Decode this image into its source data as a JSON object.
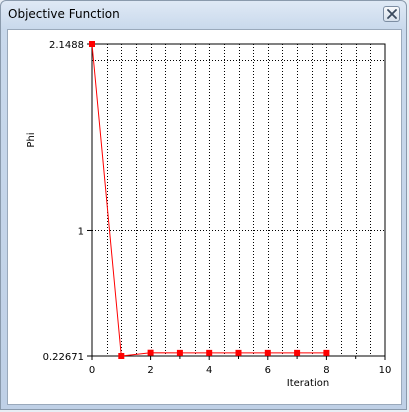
{
  "window": {
    "title": "Objective Function",
    "close_icon": "close-icon"
  },
  "chart_data": {
    "type": "line",
    "xlabel": "Iteration",
    "ylabel": "Phi",
    "xlim": [
      0,
      10
    ],
    "ylim": [
      0.22671,
      2.1488
    ],
    "x_ticks": [
      "0",
      "2",
      "4",
      "6",
      "8",
      "10"
    ],
    "y_ticks": [
      {
        "label": "2.1488",
        "value": 2.1488
      },
      {
        "label": "1",
        "value": 1
      },
      {
        "label": "0.22671",
        "value": 0.22671
      }
    ],
    "grid": true,
    "series": [
      {
        "color": "#ff0000",
        "x": [
          0,
          1,
          2,
          3,
          4,
          5,
          6,
          7,
          8
        ],
        "y": [
          2.1488,
          0.22671,
          0.247,
          0.246,
          0.246,
          0.246,
          0.246,
          0.246,
          0.246
        ]
      }
    ]
  }
}
